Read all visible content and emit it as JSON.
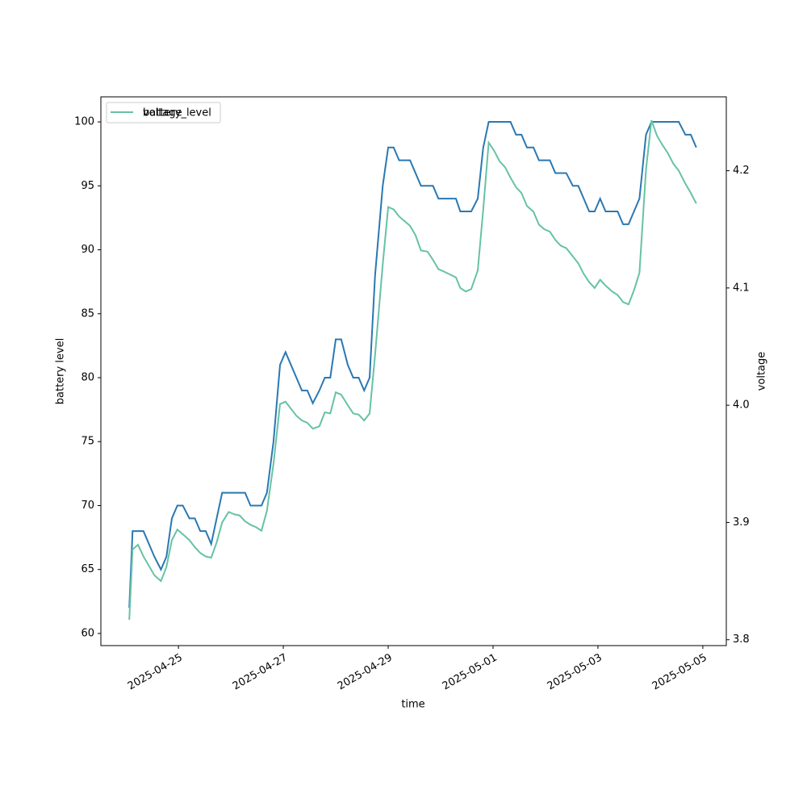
{
  "chart_data": {
    "type": "line",
    "xlabel": "time",
    "ylabel": "battery level",
    "y2label": "voltage",
    "x": [
      "2025-04-24T01:30",
      "2025-04-24T03:00",
      "2025-04-24T05:30",
      "2025-04-24T08:00",
      "2025-04-24T13:00",
      "2025-04-24T16:00",
      "2025-04-24T18:30",
      "2025-04-24T21:00",
      "2025-04-24T23:30",
      "2025-04-25T02:00",
      "2025-04-25T05:00",
      "2025-04-25T07:30",
      "2025-04-25T10:00",
      "2025-04-25T12:30",
      "2025-04-25T15:00",
      "2025-04-25T17:30",
      "2025-04-25T20:00",
      "2025-04-25T23:00",
      "2025-04-26T01:30",
      "2025-04-26T04:00",
      "2025-04-26T06:30",
      "2025-04-26T09:00",
      "2025-04-26T11:30",
      "2025-04-26T14:00",
      "2025-04-26T16:30",
      "2025-04-26T19:30",
      "2025-04-26T22:30",
      "2025-04-27T01:00",
      "2025-04-27T06:00",
      "2025-04-27T08:30",
      "2025-04-27T11:00",
      "2025-04-27T13:30",
      "2025-04-27T16:30",
      "2025-04-27T19:00",
      "2025-04-27T21:30",
      "2025-04-28T00:00",
      "2025-04-28T02:30",
      "2025-04-28T05:30",
      "2025-04-28T08:00",
      "2025-04-28T10:30",
      "2025-04-28T13:00",
      "2025-04-28T15:30",
      "2025-04-28T18:00",
      "2025-04-28T21:30",
      "2025-04-29T00:00",
      "2025-04-29T02:30",
      "2025-04-29T05:00",
      "2025-04-29T10:00",
      "2025-04-29T12:30",
      "2025-04-29T15:00",
      "2025-04-29T18:00",
      "2025-04-29T20:30",
      "2025-04-29T23:00",
      "2025-04-30T01:30",
      "2025-04-30T07:00",
      "2025-04-30T09:00",
      "2025-04-30T11:30",
      "2025-04-30T14:00",
      "2025-04-30T17:00",
      "2025-04-30T19:30",
      "2025-04-30T22:00",
      "2025-05-01T00:30",
      "2025-05-01T03:00",
      "2025-05-01T05:30",
      "2025-05-01T08:00",
      "2025-05-01T10:30",
      "2025-05-01T13:00",
      "2025-05-01T15:30",
      "2025-05-01T18:30",
      "2025-05-01T21:00",
      "2025-05-01T23:30",
      "2025-05-02T02:00",
      "2025-05-02T04:30",
      "2025-05-02T07:00",
      "2025-05-02T09:30",
      "2025-05-02T12:30",
      "2025-05-02T15:00",
      "2025-05-02T17:30",
      "2025-05-02T20:00",
      "2025-05-02T22:30",
      "2025-05-03T01:00",
      "2025-05-03T03:30",
      "2025-05-03T06:30",
      "2025-05-03T09:00",
      "2025-05-03T11:30",
      "2025-05-03T14:00",
      "2025-05-03T16:30",
      "2025-05-03T19:00",
      "2025-05-03T22:00",
      "2025-05-04T00:30",
      "2025-05-04T03:00",
      "2025-05-04T05:30",
      "2025-05-04T08:00",
      "2025-05-04T10:30",
      "2025-05-04T13:00",
      "2025-05-04T16:00",
      "2025-05-04T18:30",
      "2025-05-04T21:00"
    ],
    "series": [
      {
        "name": "battery_level",
        "color": "#2a78b2",
        "axis": "y",
        "values": [
          62,
          68,
          68,
          68,
          66,
          65,
          66,
          69,
          70,
          70,
          69,
          69,
          68,
          68,
          67,
          69,
          71,
          71,
          71,
          71,
          71,
          70,
          70,
          70,
          71,
          75,
          81,
          82,
          80,
          79,
          79,
          78,
          79,
          80,
          80,
          83,
          83,
          81,
          80,
          80,
          79,
          80,
          88,
          95,
          98,
          98,
          97,
          97,
          96,
          95,
          95,
          95,
          94,
          94,
          94,
          93,
          93,
          93,
          94,
          98,
          100,
          100,
          100,
          100,
          100,
          99,
          99,
          98,
          98,
          97,
          97,
          97,
          96,
          96,
          96,
          95,
          95,
          94,
          93,
          93,
          94,
          93,
          93,
          93,
          92,
          92,
          93,
          94,
          99,
          100,
          100,
          100,
          100,
          100,
          100,
          99,
          99,
          98
        ]
      },
      {
        "name": "voltage",
        "color": "#66c2a5",
        "axis": "y2",
        "values": [
          3.817,
          3.877,
          3.881,
          3.871,
          3.855,
          3.85,
          3.862,
          3.885,
          3.894,
          3.89,
          3.885,
          3.879,
          3.874,
          3.871,
          3.87,
          3.883,
          3.9,
          3.909,
          3.907,
          3.906,
          3.901,
          3.898,
          3.896,
          3.893,
          3.91,
          3.95,
          4.001,
          4.003,
          3.991,
          3.987,
          3.985,
          3.98,
          3.982,
          3.994,
          3.993,
          4.011,
          4.009,
          4.0,
          3.993,
          3.992,
          3.987,
          3.993,
          4.043,
          4.12,
          4.169,
          4.167,
          4.161,
          4.153,
          4.145,
          4.132,
          4.131,
          4.124,
          4.116,
          4.114,
          4.109,
          4.1,
          4.097,
          4.099,
          4.115,
          4.167,
          4.224,
          4.217,
          4.208,
          4.203,
          4.194,
          4.186,
          4.181,
          4.17,
          4.165,
          4.154,
          4.15,
          4.148,
          4.141,
          4.136,
          4.134,
          4.127,
          4.121,
          4.112,
          4.105,
          4.1,
          4.107,
          4.102,
          4.097,
          4.094,
          4.088,
          4.086,
          4.098,
          4.113,
          4.201,
          4.243,
          4.23,
          4.222,
          4.215,
          4.206,
          4.2,
          4.189,
          4.181,
          4.172
        ]
      }
    ],
    "xlim": [
      "2025-04-23T12:30",
      "2025-05-05T10:45"
    ],
    "xticks": [
      "2025-04-25",
      "2025-04-27",
      "2025-04-29",
      "2025-05-01",
      "2025-05-03",
      "2025-05-05"
    ],
    "ylim": [
      59.05,
      101.96
    ],
    "yticks": [
      60,
      65,
      70,
      75,
      80,
      85,
      90,
      95,
      100
    ],
    "y2lim": [
      3.795,
      4.263
    ],
    "y2ticks": [
      3.8,
      3.9,
      {
        "value": 4.0,
        "label": "4.0"
      },
      4.1,
      4.2
    ],
    "legend": "upper left"
  }
}
